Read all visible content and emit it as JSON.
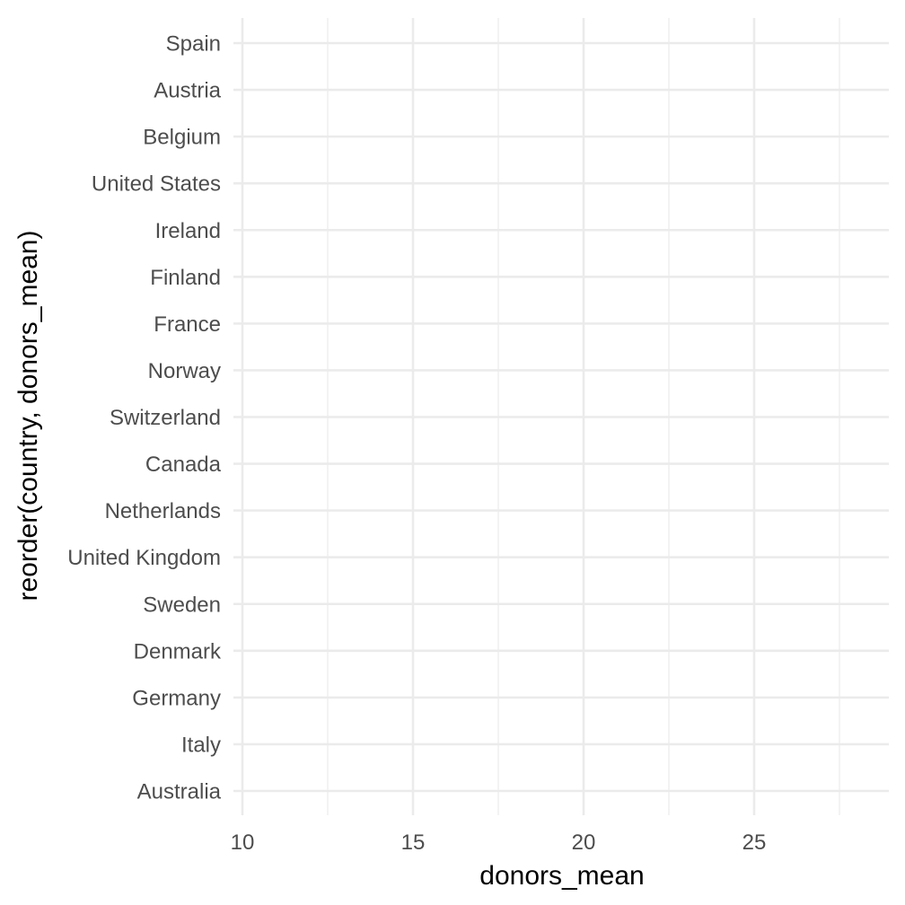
{
  "chart_data": {
    "type": "scatter",
    "title": "",
    "xlabel": "donors_mean",
    "ylabel": "reorder(country, donors_mean)",
    "xlim": [
      10,
      28.5
    ],
    "x_ticks": [
      10,
      15,
      20,
      25
    ],
    "x_minor_ticks": [
      12.5,
      17.5,
      22.5,
      27.5
    ],
    "categories": [
      "Spain",
      "Austria",
      "Belgium",
      "United States",
      "Ireland",
      "Finland",
      "France",
      "Norway",
      "Switzerland",
      "Canada",
      "Netherlands",
      "United Kingdom",
      "Sweden",
      "Denmark",
      "Germany",
      "Italy",
      "Australia"
    ],
    "points": [],
    "grid": true,
    "legend": "none"
  }
}
